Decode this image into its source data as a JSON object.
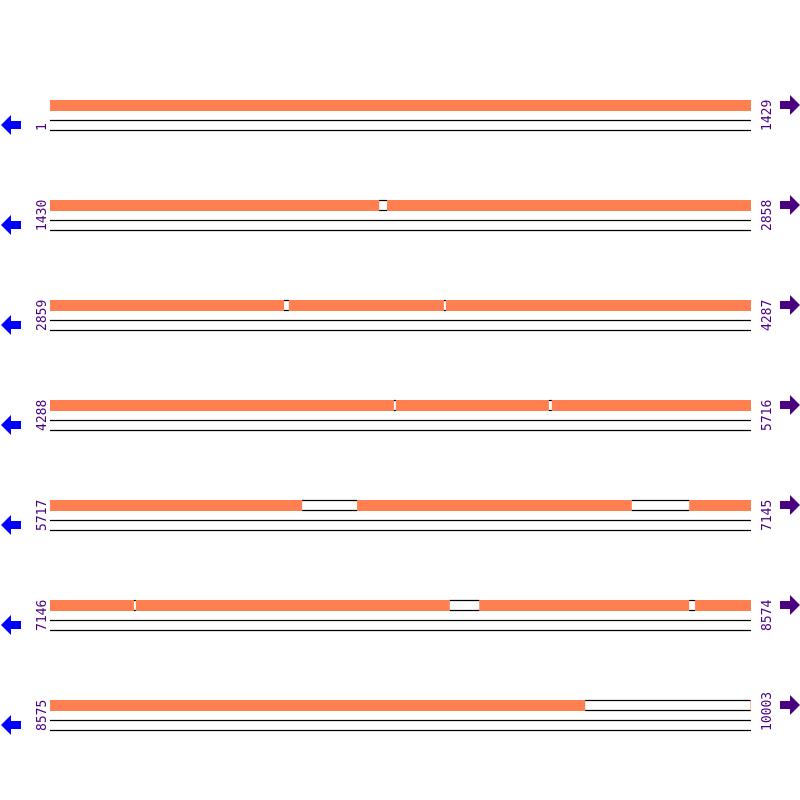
{
  "colors": {
    "covered": "#ff7f50",
    "left_arrow": "#0000ff",
    "right_label": "#4b0082",
    "line": "#000000"
  },
  "icons": {
    "left": "arrow-left-icon",
    "right": "arrow-right-icon"
  },
  "rows": [
    {
      "start": "1",
      "end": "1429",
      "gaps": []
    },
    {
      "start": "1430",
      "end": "2858",
      "gaps": [
        [
          2101,
          2117
        ]
      ]
    },
    {
      "start": "2859",
      "end": "4287",
      "gaps": [
        [
          3336,
          3346
        ],
        [
          3662,
          3666
        ]
      ]
    },
    {
      "start": "4288",
      "end": "5716",
      "gaps": [
        [
          4989,
          4993
        ],
        [
          5305,
          5311
        ]
      ]
    },
    {
      "start": "5717",
      "end": "7145",
      "gaps": [
        [
          6231,
          6343
        ],
        [
          6903,
          7020
        ]
      ]
    },
    {
      "start": "7146",
      "end": "8574",
      "gaps": [
        [
          7317,
          7321
        ],
        [
          7961,
          8021
        ],
        [
          8449,
          8461
        ]
      ]
    },
    {
      "start": "8575",
      "end": "10003",
      "gaps": [
        [
          9666,
          10003
        ]
      ]
    }
  ]
}
